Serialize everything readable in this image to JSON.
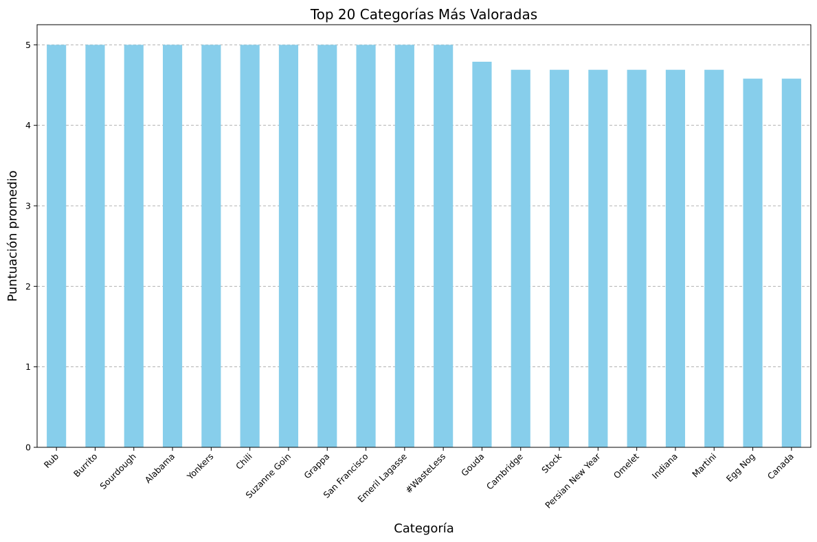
{
  "chart_data": {
    "type": "bar",
    "title": "Top 20 Categorías Más Valoradas",
    "xlabel": "Categoría",
    "ylabel": "Puntuación promedio",
    "categories": [
      "Rub",
      "Burrito",
      "Sourdough",
      "Alabama",
      "Yonkers",
      "Chili",
      "Suzanne Goin",
      "Grappa",
      "San Francisco",
      "Emeril Lagasse",
      "#WasteLess",
      "Gouda",
      "Cambridge",
      "Stock",
      "Persian New Year",
      "Omelet",
      "Indiana",
      "Martini",
      "Egg Nog",
      "Canada"
    ],
    "values": [
      5.0,
      5.0,
      5.0,
      5.0,
      5.0,
      5.0,
      5.0,
      5.0,
      5.0,
      5.0,
      5.0,
      4.79,
      4.69,
      4.69,
      4.69,
      4.69,
      4.69,
      4.69,
      4.58,
      4.58
    ],
    "ylim": [
      0,
      5.25
    ],
    "yticks": [
      "0",
      "1",
      "2",
      "3",
      "4",
      "5"
    ],
    "bar_color": "#87CEEB",
    "grid": "y-dashed",
    "legend": "none"
  }
}
